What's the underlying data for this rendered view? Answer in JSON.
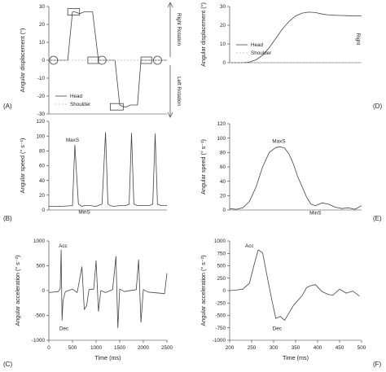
{
  "chart_data": [
    {
      "panel": "(A)",
      "type": "line",
      "ylabel": "Angular displacement (°)",
      "ylim": [
        -30,
        30
      ],
      "yticks": [
        "30",
        "20",
        "10",
        "0",
        "-10",
        "-20",
        "-30"
      ],
      "legend": {
        "placement": "bottom-left",
        "entries": [
          "Head",
          "Shoulder"
        ]
      },
      "annotations": {
        "top": "Right Rotation",
        "bottom": "Left Rotation"
      },
      "series": [
        {
          "name": "Head",
          "x": [
            0,
            0.06,
            0.08,
            0.11,
            0.16,
            0.2,
            0.22,
            0.26,
            0.3,
            0.33,
            0.37,
            0.42,
            0.46,
            0.5,
            0.53,
            0.56,
            0.6,
            0.63,
            0.66,
            0.69,
            0.72,
            0.75,
            0.78,
            0.82,
            0.85,
            0.9,
            0.95,
            1.0
          ],
          "values": [
            0,
            0,
            0,
            0,
            0,
            27,
            27,
            26,
            27,
            27,
            27,
            0,
            0,
            0,
            0,
            0,
            -25,
            -26,
            -26,
            -25,
            -25,
            -25,
            0,
            0,
            0,
            0,
            0,
            0
          ]
        },
        {
          "name": "Shoulder",
          "x": [
            0,
            1
          ],
          "values": [
            0,
            0
          ]
        }
      ]
    },
    {
      "panel": "(B)",
      "type": "line",
      "ylabel": "Angular speed (° s⁻¹)",
      "ylim": [
        0,
        120
      ],
      "yticks": [
        "120",
        "100",
        "80",
        "60",
        "40",
        "20",
        "0"
      ],
      "labels": {
        "max": "MaxS",
        "min": "MinS"
      },
      "series": [
        {
          "name": "Head",
          "x": [
            0,
            0.1,
            0.2,
            0.22,
            0.25,
            0.28,
            0.3,
            0.35,
            0.4,
            0.45,
            0.48,
            0.5,
            0.52,
            0.55,
            0.6,
            0.65,
            0.68,
            0.7,
            0.72,
            0.75,
            0.8,
            0.85,
            0.88,
            0.9,
            0.92,
            0.95,
            1.0
          ],
          "values": [
            5,
            5,
            6,
            88,
            8,
            5,
            6,
            6,
            5,
            8,
            105,
            8,
            6,
            5,
            6,
            6,
            8,
            104,
            8,
            6,
            6,
            6,
            8,
            103,
            8,
            6,
            6
          ]
        }
      ]
    },
    {
      "panel": "(C)",
      "type": "line",
      "xlabel": "Time (ms)",
      "ylabel": "Angular acceleration (° s⁻²)",
      "xlim": [
        0,
        2500
      ],
      "ylim": [
        -1000,
        1000
      ],
      "xticks": [
        "0",
        "500",
        "1000",
        "1500",
        "2000",
        "2500"
      ],
      "yticks": [
        "1000",
        "500",
        "0",
        "-500",
        "-1000"
      ],
      "labels": {
        "acc": "Acc",
        "dec": "Dec"
      },
      "series": [
        {
          "name": "Head",
          "x": [
            0,
            200,
            240,
            260,
            280,
            300,
            350,
            500,
            600,
            700,
            750,
            800,
            850,
            950,
            1000,
            1050,
            1100,
            1200,
            1350,
            1420,
            1460,
            1500,
            1600,
            1850,
            1900,
            1950,
            2000,
            2100,
            2450,
            2500
          ],
          "values": [
            -40,
            -20,
            40,
            820,
            -600,
            -200,
            -20,
            30,
            -40,
            480,
            -380,
            -300,
            20,
            30,
            600,
            -420,
            0,
            -40,
            20,
            690,
            -750,
            30,
            -20,
            20,
            620,
            -640,
            20,
            -30,
            -60,
            350
          ]
        }
      ]
    },
    {
      "panel": "(D)",
      "type": "line",
      "ylabel": "Angular displacement (°)",
      "ylim": [
        0,
        30
      ],
      "yticks": [
        "30",
        "20",
        "10",
        "0"
      ],
      "legend": {
        "placement": "bottom-left",
        "entries": [
          "Head",
          "Shoulder"
        ]
      },
      "annotations": {
        "right": "Right"
      },
      "series": [
        {
          "name": "Head",
          "x": [
            0,
            0.05,
            0.1,
            0.15,
            0.2,
            0.25,
            0.3,
            0.35,
            0.4,
            0.45,
            0.5,
            0.55,
            0.6,
            0.65,
            0.7,
            0.75,
            0.8,
            0.85,
            0.9,
            0.95,
            1.0
          ],
          "values": [
            0,
            0,
            0,
            0.3,
            1.5,
            4,
            8,
            13,
            18,
            22,
            25,
            26.5,
            27,
            26.8,
            26,
            25.5,
            25.3,
            25.2,
            25.1,
            25,
            25
          ]
        },
        {
          "name": "Shoulder",
          "x": [
            0,
            1
          ],
          "values": [
            0,
            0
          ]
        }
      ]
    },
    {
      "panel": "(E)",
      "type": "line",
      "ylabel": "Angular speed (° s⁻¹)",
      "ylim": [
        0,
        120
      ],
      "yticks": [
        "120",
        "100",
        "80",
        "60",
        "40",
        "20",
        "0"
      ],
      "labels": {
        "max": "MaxS",
        "min": "MinS"
      },
      "series": [
        {
          "name": "Head",
          "x": [
            200,
            215,
            230,
            245,
            260,
            275,
            290,
            305,
            315,
            325,
            335,
            345,
            355,
            365,
            375,
            385,
            395,
            410,
            425,
            440,
            455,
            470,
            485,
            500
          ],
          "values": [
            2,
            1,
            3,
            12,
            32,
            60,
            80,
            87,
            88,
            86,
            78,
            64,
            46,
            32,
            18,
            8,
            6,
            10,
            8,
            4,
            2,
            3,
            1,
            6
          ]
        }
      ]
    },
    {
      "panel": "(F)",
      "type": "line",
      "xlabel": "Time (ms)",
      "ylabel": "Angular acceleration (° s⁻²)",
      "xlim": [
        200,
        500
      ],
      "ylim": [
        -1000,
        1000
      ],
      "xticks": [
        "200",
        "250",
        "300",
        "350",
        "400",
        "450",
        "500"
      ],
      "yticks": [
        "1000",
        "750",
        "500",
        "250",
        "0",
        "-250",
        "-500",
        "-750",
        "-1000"
      ],
      "labels": {
        "acc": "Acc",
        "dec": "Dec"
      },
      "series": [
        {
          "name": "Head",
          "x": [
            200,
            215,
            230,
            245,
            255,
            265,
            275,
            285,
            295,
            305,
            315,
            325,
            335,
            345,
            355,
            365,
            375,
            385,
            395,
            410,
            425,
            435,
            450,
            465,
            480,
            495
          ],
          "values": [
            0,
            10,
            30,
            150,
            500,
            820,
            760,
            300,
            -150,
            -560,
            -520,
            -600,
            -450,
            -300,
            -200,
            -100,
            60,
            100,
            120,
            -20,
            -80,
            -90,
            30,
            -50,
            -10,
            -110
          ]
        }
      ]
    }
  ]
}
